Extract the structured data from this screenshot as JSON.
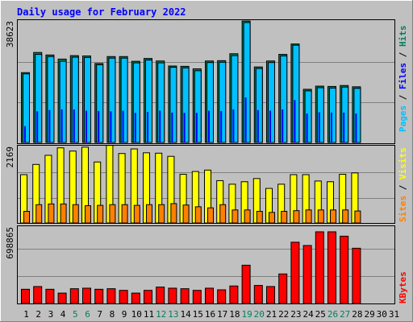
{
  "title": "Daily usage for February 2022",
  "colors": {
    "background": "#c0c0c0",
    "title": "#0000ff",
    "hits": "#00805c",
    "files": "#0000ff",
    "pages": "#00c0ff",
    "visits": "#ffff00",
    "sites": "#ff8000",
    "kbytes": "#ff0000",
    "weekend_label": "#00805c",
    "weekday_label": "#000000",
    "grid": "#808080"
  },
  "right_labels": {
    "top": [
      {
        "text": "Pages",
        "color": "#00c0ff"
      },
      {
        "text": " / ",
        "color": "#000000"
      },
      {
        "text": "Files",
        "color": "#0000ff"
      },
      {
        "text": " / ",
        "color": "#000000"
      },
      {
        "text": "Hits",
        "color": "#00805c"
      }
    ],
    "middle": [
      {
        "text": "Sites",
        "color": "#ff8000"
      },
      {
        "text": " / ",
        "color": "#000000"
      },
      {
        "text": "Visits",
        "color": "#ffff00"
      }
    ],
    "bottom": [
      {
        "text": "KBytes",
        "color": "#ff0000"
      }
    ]
  },
  "chart_data": [
    {
      "type": "bar",
      "panel": "hits-files-pages",
      "ymax_label": "38623",
      "ylim": [
        0,
        38623
      ],
      "categories": [
        "1",
        "2",
        "3",
        "4",
        "5",
        "6",
        "7",
        "8",
        "9",
        "10",
        "11",
        "12",
        "13",
        "14",
        "15",
        "16",
        "17",
        "18",
        "19",
        "20",
        "21",
        "22",
        "23",
        "24",
        "25",
        "26",
        "27",
        "28",
        "29",
        "30",
        "31"
      ],
      "series": [
        {
          "name": "Hits",
          "color": "#00805c",
          "values": [
            22200,
            28600,
            27800,
            26500,
            27600,
            27500,
            25100,
            27300,
            27300,
            25800,
            26700,
            25900,
            24300,
            24200,
            23400,
            25900,
            26000,
            28200,
            38600,
            24000,
            25900,
            28000,
            31300,
            16900,
            17900,
            17800,
            18100,
            17700,
            null,
            null,
            null
          ]
        },
        {
          "name": "Files",
          "color": "#0000ff",
          "values": [
            5200,
            9900,
            10300,
            10500,
            10500,
            10100,
            10000,
            9900,
            10100,
            9400,
            9700,
            10100,
            9500,
            9400,
            9400,
            10100,
            10000,
            10500,
            14300,
            10300,
            10100,
            10500,
            13500,
            9200,
            9600,
            9500,
            9500,
            9200,
            null,
            null,
            null
          ]
        },
        {
          "name": "Pages",
          "color": "#00c0ff",
          "values": [
            21800,
            28000,
            27300,
            25800,
            27100,
            27000,
            24700,
            26800,
            26800,
            25300,
            26200,
            25300,
            23900,
            23700,
            22800,
            25400,
            25500,
            27600,
            38100,
            23500,
            25400,
            27500,
            30900,
            16400,
            17400,
            17300,
            17600,
            17200,
            null,
            null,
            null
          ]
        }
      ]
    },
    {
      "type": "bar",
      "panel": "visits-sites",
      "ymax_label": "2169",
      "ylim": [
        0,
        2169
      ],
      "categories": [
        "1",
        "2",
        "3",
        "4",
        "5",
        "6",
        "7",
        "8",
        "9",
        "10",
        "11",
        "12",
        "13",
        "14",
        "15",
        "16",
        "17",
        "18",
        "19",
        "20",
        "21",
        "22",
        "23",
        "24",
        "25",
        "26",
        "27",
        "28",
        "29",
        "30",
        "31"
      ],
      "series": [
        {
          "name": "Visits",
          "color": "#ffff00",
          "values": [
            1370,
            1660,
            1920,
            2130,
            2040,
            2150,
            1730,
            2200,
            1970,
            2100,
            1990,
            1980,
            1890,
            1380,
            1460,
            1500,
            1200,
            1100,
            1170,
            1260,
            980,
            1100,
            1370,
            1370,
            1190,
            1170,
            1380,
            1420,
            null,
            null,
            null
          ]
        },
        {
          "name": "Sites",
          "color": "#ff8000",
          "values": [
            330,
            520,
            540,
            540,
            520,
            490,
            500,
            520,
            520,
            500,
            520,
            520,
            550,
            510,
            460,
            430,
            520,
            370,
            370,
            330,
            300,
            330,
            350,
            370,
            370,
            370,
            370,
            340,
            null,
            null,
            null
          ]
        }
      ]
    },
    {
      "type": "bar",
      "panel": "kbytes",
      "ymax_label": "698865",
      "ylim": [
        0,
        698865
      ],
      "categories": [
        "1",
        "2",
        "3",
        "4",
        "5",
        "6",
        "7",
        "8",
        "9",
        "10",
        "11",
        "12",
        "13",
        "14",
        "15",
        "16",
        "17",
        "18",
        "19",
        "20",
        "21",
        "22",
        "23",
        "24",
        "25",
        "26",
        "27",
        "28",
        "29",
        "30",
        "31"
      ],
      "series": [
        {
          "name": "KBytes",
          "color": "#ff0000",
          "values": [
            130000,
            155000,
            130000,
            95000,
            135000,
            140000,
            130000,
            135000,
            120000,
            95000,
            120000,
            150000,
            140000,
            135000,
            120000,
            140000,
            125000,
            160000,
            350000,
            165000,
            155000,
            270000,
            560000,
            530000,
            655000,
            655000,
            615000,
            505000,
            null,
            null,
            null
          ]
        }
      ]
    }
  ],
  "weekend_days": [
    5,
    6,
    12,
    13,
    19,
    20,
    26,
    27
  ]
}
